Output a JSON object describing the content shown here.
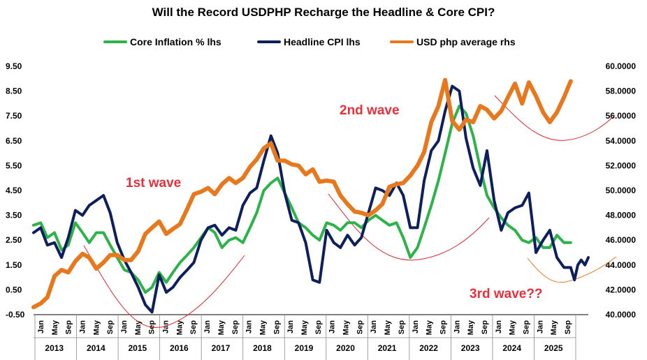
{
  "chart_data": {
    "type": "line",
    "title": "Will the Record USDPHP Recharge the Headline & Core CPI?",
    "legend_position": "top",
    "grid": false,
    "y_left": {
      "ticks": [
        "9.50",
        "8.50",
        "7.50",
        "6.50",
        "5.50",
        "4.50",
        "3.50",
        "2.50",
        "1.50",
        "0.50",
        "-0.50"
      ],
      "ylim": [
        -0.5,
        9.5
      ]
    },
    "y_right": {
      "ticks": [
        "60.0000",
        "58.0000",
        "56.0000",
        "54.0000",
        "52.0000",
        "50.0000",
        "48.0000",
        "46.0000",
        "44.0000",
        "42.0000",
        "40.0000"
      ],
      "ylim": [
        40,
        60
      ]
    },
    "x_months": [
      "Jan",
      "May",
      "Sep"
    ],
    "years": [
      "2013",
      "2014",
      "2015",
      "2016",
      "2017",
      "2018",
      "2019",
      "2020",
      "2021",
      "2022",
      "2023",
      "2024",
      "2025"
    ],
    "series": [
      {
        "name": "Core Inflation % lhs",
        "axis": "left",
        "color": "#2db34a",
        "values": [
          [
            2013.0,
            3.1
          ],
          [
            2013.17,
            3.2
          ],
          [
            2013.33,
            2.6
          ],
          [
            2013.5,
            2.8
          ],
          [
            2013.67,
            2.1
          ],
          [
            2013.83,
            2.3
          ],
          [
            2014.0,
            3.2
          ],
          [
            2014.17,
            2.8
          ],
          [
            2014.33,
            2.4
          ],
          [
            2014.5,
            2.8
          ],
          [
            2014.67,
            2.8
          ],
          [
            2014.83,
            2.3
          ],
          [
            2015.0,
            1.8
          ],
          [
            2015.17,
            1.3
          ],
          [
            2015.33,
            1.2
          ],
          [
            2015.5,
            0.9
          ],
          [
            2015.67,
            0.4
          ],
          [
            2015.83,
            0.6
          ],
          [
            2016.0,
            1.2
          ],
          [
            2016.17,
            0.8
          ],
          [
            2016.33,
            1.2
          ],
          [
            2016.5,
            1.6
          ],
          [
            2016.67,
            1.9
          ],
          [
            2016.83,
            2.2
          ],
          [
            2017.0,
            2.6
          ],
          [
            2017.17,
            3.0
          ],
          [
            2017.33,
            2.8
          ],
          [
            2017.5,
            2.2
          ],
          [
            2017.67,
            2.5
          ],
          [
            2017.83,
            2.6
          ],
          [
            2018.0,
            2.4
          ],
          [
            2018.17,
            3.0
          ],
          [
            2018.33,
            3.6
          ],
          [
            2018.5,
            4.5
          ],
          [
            2018.67,
            4.8
          ],
          [
            2018.83,
            5.0
          ],
          [
            2019.0,
            4.4
          ],
          [
            2019.17,
            3.8
          ],
          [
            2019.33,
            3.2
          ],
          [
            2019.5,
            3.0
          ],
          [
            2019.67,
            2.7
          ],
          [
            2019.83,
            2.5
          ],
          [
            2020.0,
            3.2
          ],
          [
            2020.17,
            3.1
          ],
          [
            2020.33,
            2.9
          ],
          [
            2020.5,
            3.2
          ],
          [
            2020.67,
            3.2
          ],
          [
            2020.83,
            3.0
          ],
          [
            2021.0,
            3.3
          ],
          [
            2021.17,
            3.5
          ],
          [
            2021.33,
            3.3
          ],
          [
            2021.5,
            3.1
          ],
          [
            2021.67,
            3.2
          ],
          [
            2021.83,
            2.6
          ],
          [
            2022.0,
            1.8
          ],
          [
            2022.17,
            2.2
          ],
          [
            2022.33,
            3.0
          ],
          [
            2022.5,
            3.9
          ],
          [
            2022.67,
            4.9
          ],
          [
            2022.83,
            6.0
          ],
          [
            2023.0,
            7.2
          ],
          [
            2023.17,
            7.9
          ],
          [
            2023.33,
            7.6
          ],
          [
            2023.5,
            6.7
          ],
          [
            2023.67,
            5.4
          ],
          [
            2023.83,
            4.3
          ],
          [
            2024.0,
            3.8
          ],
          [
            2024.17,
            3.4
          ],
          [
            2024.33,
            3.1
          ],
          [
            2024.5,
            2.9
          ],
          [
            2024.67,
            2.5
          ],
          [
            2024.83,
            2.4
          ],
          [
            2025.0,
            2.6
          ],
          [
            2025.17,
            2.2
          ],
          [
            2025.33,
            2.2
          ],
          [
            2025.5,
            2.7
          ],
          [
            2025.67,
            2.4
          ],
          [
            2025.83,
            2.4
          ]
        ]
      },
      {
        "name": "Headline CPI lhs",
        "axis": "left",
        "color": "#0d1f5c",
        "values": [
          [
            2013.0,
            2.8
          ],
          [
            2013.17,
            3.0
          ],
          [
            2013.33,
            2.3
          ],
          [
            2013.5,
            2.4
          ],
          [
            2013.67,
            1.8
          ],
          [
            2013.83,
            2.6
          ],
          [
            2014.0,
            3.7
          ],
          [
            2014.17,
            3.5
          ],
          [
            2014.33,
            3.9
          ],
          [
            2014.5,
            4.1
          ],
          [
            2014.67,
            4.3
          ],
          [
            2014.83,
            3.6
          ],
          [
            2015.0,
            2.4
          ],
          [
            2015.17,
            1.7
          ],
          [
            2015.33,
            1.2
          ],
          [
            2015.5,
            0.6
          ],
          [
            2015.67,
            -0.1
          ],
          [
            2015.83,
            -0.4
          ],
          [
            2016.0,
            1.1
          ],
          [
            2016.17,
            0.4
          ],
          [
            2016.33,
            0.6
          ],
          [
            2016.5,
            1.0
          ],
          [
            2016.67,
            1.3
          ],
          [
            2016.83,
            1.6
          ],
          [
            2017.0,
            2.5
          ],
          [
            2017.17,
            3.0
          ],
          [
            2017.33,
            3.1
          ],
          [
            2017.5,
            2.7
          ],
          [
            2017.67,
            3.0
          ],
          [
            2017.83,
            2.9
          ],
          [
            2018.0,
            3.9
          ],
          [
            2018.17,
            4.4
          ],
          [
            2018.33,
            4.6
          ],
          [
            2018.5,
            5.7
          ],
          [
            2018.67,
            6.7
          ],
          [
            2018.83,
            6.0
          ],
          [
            2019.0,
            4.4
          ],
          [
            2019.17,
            3.3
          ],
          [
            2019.33,
            3.2
          ],
          [
            2019.5,
            2.4
          ],
          [
            2019.67,
            0.9
          ],
          [
            2019.83,
            0.8
          ],
          [
            2020.0,
            2.9
          ],
          [
            2020.17,
            2.4
          ],
          [
            2020.33,
            2.2
          ],
          [
            2020.5,
            2.7
          ],
          [
            2020.67,
            2.3
          ],
          [
            2020.83,
            2.6
          ],
          [
            2021.0,
            3.6
          ],
          [
            2021.17,
            4.6
          ],
          [
            2021.33,
            4.5
          ],
          [
            2021.5,
            4.3
          ],
          [
            2021.67,
            4.8
          ],
          [
            2021.83,
            4.3
          ],
          [
            2022.0,
            3.0
          ],
          [
            2022.17,
            3.0
          ],
          [
            2022.33,
            4.9
          ],
          [
            2022.5,
            6.1
          ],
          [
            2022.67,
            6.5
          ],
          [
            2022.83,
            7.7
          ],
          [
            2023.0,
            8.7
          ],
          [
            2023.17,
            8.5
          ],
          [
            2023.33,
            6.6
          ],
          [
            2023.5,
            5.4
          ],
          [
            2023.67,
            4.7
          ],
          [
            2023.83,
            6.1
          ],
          [
            2024.0,
            4.1
          ],
          [
            2024.17,
            2.9
          ],
          [
            2024.33,
            3.6
          ],
          [
            2024.5,
            3.8
          ],
          [
            2024.67,
            3.9
          ],
          [
            2024.83,
            4.4
          ],
          [
            2025.0,
            2.0
          ],
          [
            2025.17,
            2.5
          ],
          [
            2025.33,
            2.9
          ],
          [
            2025.5,
            1.8
          ],
          [
            2025.67,
            1.4
          ],
          [
            2025.83,
            1.4
          ]
        ],
        "tail": [
          [
            2025.92,
            0.9
          ],
          [
            2026.0,
            1.5
          ],
          [
            2026.08,
            1.7
          ],
          [
            2026.17,
            1.5
          ],
          [
            2026.25,
            1.8
          ]
        ]
      },
      {
        "name": "USD php average rhs",
        "axis": "right",
        "color": "#e8781e",
        "values": [
          [
            2013.0,
            40.6
          ],
          [
            2013.17,
            40.9
          ],
          [
            2013.33,
            41.4
          ],
          [
            2013.5,
            43.1
          ],
          [
            2013.67,
            43.6
          ],
          [
            2013.83,
            43.4
          ],
          [
            2014.0,
            44.3
          ],
          [
            2014.17,
            44.9
          ],
          [
            2014.33,
            44.6
          ],
          [
            2014.5,
            43.7
          ],
          [
            2014.67,
            44.2
          ],
          [
            2014.83,
            44.8
          ],
          [
            2015.0,
            44.8
          ],
          [
            2015.17,
            44.4
          ],
          [
            2015.33,
            44.4
          ],
          [
            2015.5,
            45.1
          ],
          [
            2015.67,
            46.5
          ],
          [
            2015.83,
            47.0
          ],
          [
            2016.0,
            47.5
          ],
          [
            2016.17,
            46.5
          ],
          [
            2016.33,
            46.9
          ],
          [
            2016.5,
            47.3
          ],
          [
            2016.67,
            48.5
          ],
          [
            2016.83,
            49.7
          ],
          [
            2017.0,
            49.9
          ],
          [
            2017.17,
            50.2
          ],
          [
            2017.33,
            49.7
          ],
          [
            2017.5,
            50.5
          ],
          [
            2017.67,
            51.0
          ],
          [
            2017.83,
            50.6
          ],
          [
            2018.0,
            51.0
          ],
          [
            2018.17,
            51.9
          ],
          [
            2018.33,
            52.5
          ],
          [
            2018.5,
            53.4
          ],
          [
            2018.67,
            53.8
          ],
          [
            2018.83,
            52.4
          ],
          [
            2019.0,
            52.4
          ],
          [
            2019.17,
            52.1
          ],
          [
            2019.33,
            52.0
          ],
          [
            2019.5,
            51.3
          ],
          [
            2019.67,
            51.7
          ],
          [
            2019.83,
            50.7
          ],
          [
            2020.0,
            50.8
          ],
          [
            2020.17,
            50.7
          ],
          [
            2020.33,
            49.6
          ],
          [
            2020.5,
            48.9
          ],
          [
            2020.67,
            48.3
          ],
          [
            2020.83,
            48.2
          ],
          [
            2021.0,
            48.0
          ],
          [
            2021.17,
            48.4
          ],
          [
            2021.33,
            48.9
          ],
          [
            2021.5,
            50.3
          ],
          [
            2021.67,
            50.5
          ],
          [
            2021.83,
            50.6
          ],
          [
            2022.0,
            51.2
          ],
          [
            2022.17,
            52.0
          ],
          [
            2022.33,
            53.1
          ],
          [
            2022.5,
            55.5
          ],
          [
            2022.67,
            56.8
          ],
          [
            2022.83,
            58.9
          ],
          [
            2023.0,
            55.6
          ],
          [
            2023.17,
            54.9
          ],
          [
            2023.33,
            55.7
          ],
          [
            2023.5,
            55.5
          ],
          [
            2023.67,
            56.8
          ],
          [
            2023.83,
            56.5
          ],
          [
            2024.0,
            55.8
          ],
          [
            2024.17,
            56.4
          ],
          [
            2024.33,
            57.5
          ],
          [
            2024.5,
            58.6
          ],
          [
            2024.67,
            57.0
          ],
          [
            2024.83,
            58.7
          ],
          [
            2025.0,
            57.6
          ],
          [
            2025.17,
            56.3
          ],
          [
            2025.33,
            55.5
          ],
          [
            2025.5,
            56.3
          ],
          [
            2025.67,
            57.5
          ],
          [
            2025.83,
            58.8
          ]
        ]
      }
    ],
    "annotations": [
      {
        "text": "1st wave",
        "color": "#e8303a"
      },
      {
        "text": "2nd wave",
        "color": "#e8303a"
      },
      {
        "text": "3rd wave??",
        "color": "#e8303a"
      }
    ]
  }
}
